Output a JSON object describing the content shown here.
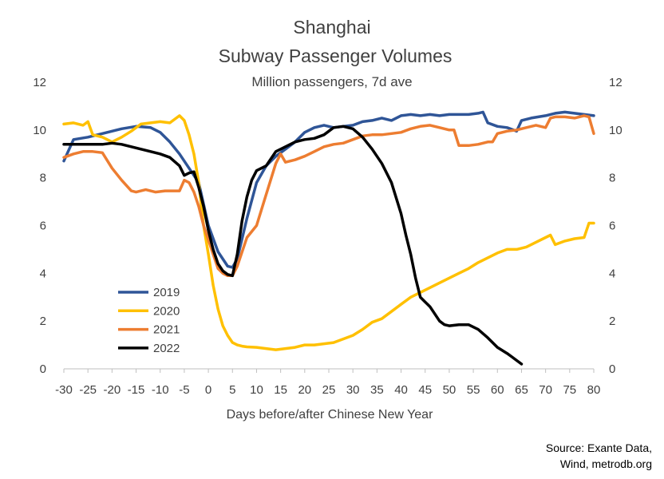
{
  "chart_data": {
    "type": "line",
    "title": "Shanghai",
    "subtitle": "Subway Passenger Volumes",
    "units": "Million passengers, 7d ave",
    "xlabel": "Days before/after Chinese New Year",
    "xlim": [
      -30,
      80
    ],
    "ylim": [
      0,
      12
    ],
    "xticks": [
      -30,
      -25,
      -20,
      -15,
      -10,
      -5,
      0,
      5,
      10,
      15,
      20,
      25,
      30,
      35,
      40,
      45,
      50,
      55,
      60,
      65,
      70,
      75,
      80
    ],
    "yticks": [
      0,
      2,
      4,
      6,
      8,
      10,
      12
    ],
    "grid": false,
    "legend_position": "lower-left",
    "source": [
      "Source: Exante Data,",
      "Wind, metrodb.org"
    ],
    "series": [
      {
        "name": "2019",
        "color": "#2F5597",
        "x": [
          -30,
          -28,
          -25,
          -22,
          -20,
          -18,
          -15,
          -12,
          -10,
          -8,
          -6,
          -4,
          -2,
          0,
          2,
          4,
          5,
          6,
          8,
          10,
          12,
          14,
          16,
          18,
          20,
          22,
          24,
          26,
          28,
          30,
          32,
          34,
          36,
          38,
          40,
          42,
          44,
          46,
          48,
          50,
          52,
          54,
          56,
          57,
          58,
          60,
          62,
          64,
          65,
          67,
          70,
          72,
          74,
          76,
          78,
          80
        ],
        "y": [
          8.7,
          9.6,
          9.7,
          9.85,
          9.95,
          10.05,
          10.15,
          10.1,
          9.9,
          9.5,
          9.0,
          8.4,
          7.8,
          6.0,
          4.9,
          4.3,
          4.25,
          4.6,
          6.3,
          7.8,
          8.5,
          8.9,
          9.2,
          9.5,
          9.9,
          10.1,
          10.2,
          10.1,
          10.15,
          10.2,
          10.35,
          10.4,
          10.5,
          10.4,
          10.6,
          10.65,
          10.6,
          10.65,
          10.6,
          10.65,
          10.65,
          10.65,
          10.7,
          10.75,
          10.3,
          10.15,
          10.1,
          9.95,
          10.4,
          10.5,
          10.6,
          10.7,
          10.75,
          10.7,
          10.65,
          10.6
        ]
      },
      {
        "name": "2020",
        "color": "#FFC000",
        "x": [
          -30,
          -28,
          -26,
          -25,
          -24,
          -22,
          -20,
          -18,
          -16,
          -14,
          -12,
          -10,
          -8,
          -6,
          -5,
          -4,
          -3,
          -2,
          -1,
          0,
          1,
          2,
          3,
          4,
          5,
          6,
          7,
          8,
          10,
          12,
          14,
          16,
          18,
          20,
          22,
          24,
          26,
          28,
          30,
          32,
          34,
          36,
          38,
          40,
          42,
          44,
          46,
          48,
          50,
          52,
          54,
          56,
          58,
          60,
          62,
          64,
          66,
          68,
          70,
          71,
          72,
          74,
          76,
          78,
          79,
          80
        ],
        "y": [
          10.25,
          10.3,
          10.2,
          10.35,
          9.8,
          9.7,
          9.5,
          9.7,
          9.95,
          10.25,
          10.3,
          10.35,
          10.3,
          10.6,
          10.4,
          9.8,
          9.0,
          7.8,
          6.0,
          4.8,
          3.5,
          2.5,
          1.8,
          1.4,
          1.1,
          1.0,
          0.95,
          0.92,
          0.9,
          0.85,
          0.8,
          0.85,
          0.9,
          1.0,
          1.0,
          1.05,
          1.1,
          1.25,
          1.4,
          1.65,
          1.95,
          2.1,
          2.4,
          2.7,
          3.0,
          3.2,
          3.4,
          3.6,
          3.8,
          4.0,
          4.2,
          4.45,
          4.65,
          4.85,
          5.0,
          5.0,
          5.1,
          5.3,
          5.5,
          5.6,
          5.2,
          5.35,
          5.45,
          5.5,
          6.1,
          6.1
        ]
      },
      {
        "name": "2021",
        "color": "#ED7D31",
        "x": [
          -30,
          -28,
          -26,
          -24,
          -22,
          -20,
          -18,
          -16,
          -15,
          -13,
          -11,
          -9,
          -7,
          -6,
          -5,
          -4,
          -3,
          -2,
          -1,
          0,
          1,
          2,
          3,
          4,
          5,
          6,
          8,
          10,
          12,
          14,
          15,
          16,
          18,
          20,
          22,
          24,
          26,
          28,
          30,
          32,
          34,
          36,
          38,
          40,
          42,
          44,
          46,
          48,
          50,
          51,
          52,
          54,
          56,
          58,
          59,
          60,
          62,
          64,
          66,
          68,
          70,
          71,
          72,
          74,
          76,
          78,
          79,
          80
        ],
        "y": [
          8.85,
          9.0,
          9.1,
          9.1,
          9.05,
          8.4,
          7.9,
          7.45,
          7.4,
          7.5,
          7.4,
          7.45,
          7.45,
          7.45,
          7.9,
          7.8,
          7.4,
          6.8,
          6.0,
          5.4,
          4.8,
          4.2,
          4.0,
          3.9,
          3.9,
          4.3,
          5.5,
          6.0,
          7.3,
          8.6,
          9.0,
          8.65,
          8.75,
          8.9,
          9.1,
          9.3,
          9.4,
          9.45,
          9.6,
          9.75,
          9.8,
          9.8,
          9.85,
          9.9,
          10.05,
          10.15,
          10.2,
          10.1,
          10.0,
          10.0,
          9.35,
          9.35,
          9.4,
          9.5,
          9.5,
          9.85,
          9.95,
          10.0,
          10.1,
          10.2,
          10.1,
          10.5,
          10.55,
          10.55,
          10.5,
          10.6,
          10.55,
          9.85
        ]
      },
      {
        "name": "2022",
        "color": "#000000",
        "x": [
          -30,
          -28,
          -26,
          -24,
          -22,
          -20,
          -18,
          -16,
          -14,
          -12,
          -10,
          -8,
          -6,
          -5,
          -4,
          -3,
          -2,
          -1,
          0,
          1,
          2,
          3,
          4,
          5,
          6,
          7,
          8,
          9,
          10,
          12,
          14,
          16,
          18,
          20,
          22,
          24,
          26,
          28,
          30,
          32,
          34,
          36,
          38,
          40,
          41,
          42,
          43,
          44,
          45,
          46,
          47,
          48,
          49,
          50,
          52,
          54,
          56,
          58,
          60,
          62,
          63,
          64,
          65
        ],
        "y": [
          9.4,
          9.4,
          9.4,
          9.4,
          9.4,
          9.45,
          9.4,
          9.3,
          9.2,
          9.1,
          9.0,
          8.85,
          8.5,
          8.1,
          8.2,
          8.25,
          7.6,
          6.8,
          5.8,
          5.0,
          4.4,
          4.1,
          3.95,
          3.9,
          4.8,
          6.2,
          7.2,
          7.9,
          8.3,
          8.5,
          9.1,
          9.3,
          9.5,
          9.6,
          9.65,
          9.8,
          10.1,
          10.15,
          10.05,
          9.7,
          9.2,
          8.6,
          7.8,
          6.5,
          5.6,
          4.8,
          3.8,
          3.0,
          2.8,
          2.6,
          2.3,
          2.0,
          1.85,
          1.8,
          1.85,
          1.85,
          1.65,
          1.3,
          0.9,
          0.65,
          0.5,
          0.35,
          0.2
        ]
      }
    ]
  }
}
